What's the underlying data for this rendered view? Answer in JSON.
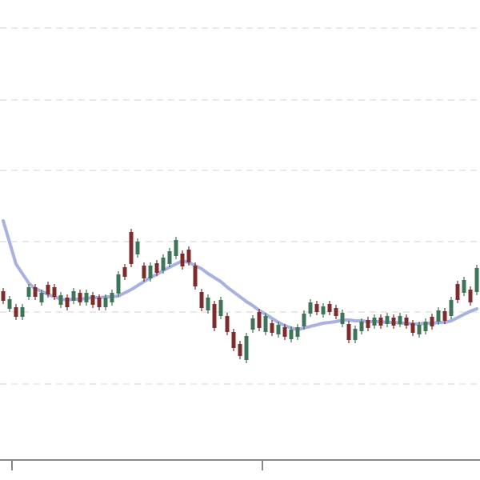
{
  "chart_data": {
    "type": "candlestick",
    "x": [
      0,
      1,
      2,
      3,
      4,
      5,
      6,
      7,
      8,
      9,
      10,
      11,
      12,
      13,
      14,
      15,
      16,
      17,
      18,
      19,
      20,
      21,
      22,
      23,
      24,
      25,
      26,
      27,
      28,
      29,
      30,
      31,
      32,
      33,
      34,
      35,
      36,
      37,
      38,
      39,
      40,
      41,
      42,
      43,
      44,
      45,
      46,
      47,
      48,
      49,
      50,
      51,
      52,
      53,
      54,
      55,
      56,
      57,
      58,
      59,
      60,
      61,
      62,
      63,
      64,
      65,
      66,
      67,
      68,
      69,
      70,
      71,
      72,
      73,
      74
    ],
    "open": [
      236,
      214,
      216,
      204,
      229,
      241,
      222,
      244,
      241,
      219,
      228,
      224,
      234,
      222,
      231,
      228,
      216,
      222,
      233,
      266,
      310,
      282,
      268,
      252,
      271,
      262,
      270,
      280,
      283,
      288,
      268,
      235,
      212,
      220,
      205,
      205,
      185,
      170,
      150,
      188,
      210,
      185,
      196,
      182,
      191,
      176,
      179,
      192,
      208,
      220,
      207,
      220,
      215,
      195,
      195,
      175,
      186,
      200,
      193,
      203,
      195,
      203,
      195,
      203,
      196,
      182,
      186,
      204,
      198,
      211,
      205,
      245,
      234,
      238,
      235
    ],
    "close": [
      224,
      226,
      204,
      216,
      241,
      229,
      234,
      232,
      229,
      231,
      216,
      236,
      222,
      234,
      219,
      216,
      228,
      234,
      257,
      254,
      270,
      298,
      252,
      268,
      259,
      278,
      286,
      300,
      267,
      272,
      242,
      215,
      228,
      190,
      225,
      185,
      165,
      155,
      180,
      202,
      190,
      205,
      184,
      194,
      179,
      188,
      191,
      208,
      222,
      210,
      217,
      210,
      205,
      209,
      175,
      189,
      198,
      190,
      203,
      193,
      205,
      193,
      205,
      193,
      184,
      194,
      198,
      192,
      212,
      199,
      225,
      225,
      250,
      222,
      265
    ],
    "high": [
      240,
      230,
      220,
      220,
      245,
      245,
      238,
      248,
      245,
      235,
      232,
      240,
      238,
      238,
      235,
      232,
      232,
      238,
      261,
      270,
      314,
      302,
      272,
      272,
      275,
      282,
      290,
      304,
      287,
      292,
      272,
      239,
      232,
      224,
      229,
      209,
      189,
      174,
      184,
      206,
      214,
      209,
      200,
      198,
      195,
      192,
      195,
      212,
      226,
      224,
      221,
      224,
      219,
      213,
      199,
      193,
      202,
      204,
      207,
      207,
      209,
      207,
      209,
      207,
      200,
      198,
      202,
      208,
      216,
      215,
      229,
      249,
      254,
      242,
      269
    ],
    "low": [
      220,
      210,
      200,
      200,
      225,
      225,
      218,
      228,
      225,
      215,
      212,
      220,
      218,
      218,
      215,
      212,
      212,
      218,
      229,
      250,
      266,
      278,
      248,
      248,
      255,
      258,
      266,
      276,
      263,
      268,
      238,
      211,
      208,
      186,
      201,
      181,
      161,
      151,
      146,
      184,
      186,
      181,
      180,
      178,
      175,
      172,
      175,
      188,
      204,
      206,
      203,
      206,
      201,
      191,
      171,
      171,
      182,
      186,
      189,
      189,
      191,
      189,
      191,
      189,
      180,
      178,
      182,
      188,
      194,
      195,
      201,
      221,
      230,
      218,
      231
    ],
    "ma": [
      324,
      297,
      270,
      258,
      246,
      239,
      236,
      232,
      229,
      226,
      225,
      226,
      226,
      227,
      228,
      228,
      229,
      229,
      230,
      234,
      238,
      243,
      248,
      253,
      257,
      262,
      266,
      270,
      274,
      272,
      268,
      264,
      258,
      253,
      248,
      241,
      235,
      229,
      223,
      218,
      212,
      207,
      202,
      197,
      193,
      190,
      188,
      190,
      192,
      194,
      196,
      197,
      198,
      200,
      200,
      199,
      199,
      198,
      198,
      198,
      197,
      197,
      196,
      196,
      195,
      195,
      196,
      196,
      197,
      197,
      199,
      203,
      207,
      211,
      214
    ],
    "up_color": "#3f7458",
    "down_color": "#7f2b2b",
    "ma_color": "#a8b2e2",
    "xlim": [
      -0.5,
      74.5
    ],
    "xticks": [
      1.375,
      40.5
    ],
    "ylim": [
      0,
      600
    ],
    "yticks": [
      120,
      210,
      298,
      387,
      475,
      565
    ],
    "grid": true
  }
}
